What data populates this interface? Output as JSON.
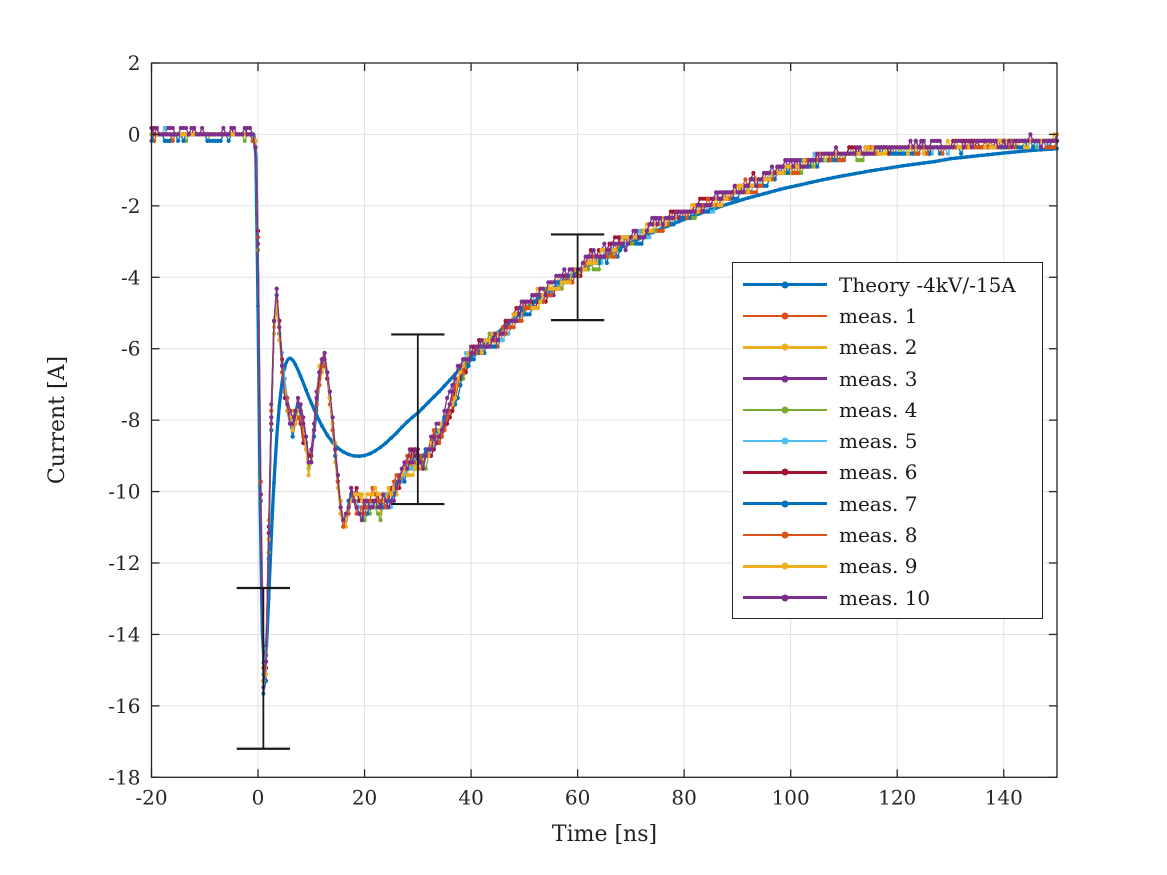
{
  "figure": {
    "background": "#ffffff",
    "axes_color": "#262626",
    "grid_color": "#e0e0e0",
    "errorbar_color": "#1a1a1a",
    "text_color": "#1f1f1f"
  },
  "chart_data": {
    "type": "line",
    "title": "",
    "xlabel": "Time [ns]",
    "ylabel": "Current [A]",
    "xlim": [
      -20,
      150
    ],
    "ylim": [
      -18,
      2
    ],
    "xticks": [
      -20,
      0,
      20,
      40,
      60,
      80,
      100,
      120,
      140
    ],
    "yticks": [
      2,
      0,
      -2,
      -4,
      -6,
      -8,
      -10,
      -12,
      -14,
      -16,
      -18
    ],
    "grid": true,
    "legend": {
      "position": "right-center",
      "entries": [
        {
          "label": "Theory -4kV/-15A",
          "color": "#0072BD"
        },
        {
          "label": "meas. 1",
          "color": "#D95319"
        },
        {
          "label": "meas. 2",
          "color": "#EDB120"
        },
        {
          "label": "meas. 3",
          "color": "#7E2F8E"
        },
        {
          "label": "meas. 4",
          "color": "#77AC30"
        },
        {
          "label": "meas. 5",
          "color": "#4DBEEE"
        },
        {
          "label": "meas. 6",
          "color": "#A2142F"
        },
        {
          "label": "meas. 7",
          "color": "#0072BD"
        },
        {
          "label": "meas. 8",
          "color": "#D95319"
        },
        {
          "label": "meas. 9",
          "color": "#EDB120"
        },
        {
          "label": "meas. 10",
          "color": "#7E2F8E"
        }
      ]
    },
    "theory": {
      "name": "Theory -4kV/-15A",
      "color": "#0072BD",
      "points": [
        [
          -20,
          0
        ],
        [
          -10,
          0
        ],
        [
          -5,
          0
        ],
        [
          -2,
          0
        ],
        [
          -1,
          0
        ],
        [
          -0.6,
          0
        ],
        [
          -0.4,
          -0.6
        ],
        [
          -0.2,
          -2.2
        ],
        [
          0,
          -4.8
        ],
        [
          0.2,
          -7.8
        ],
        [
          0.4,
          -10.4
        ],
        [
          0.6,
          -12.4
        ],
        [
          0.8,
          -13.9
        ],
        [
          1,
          -14.8
        ],
        [
          1.2,
          -15
        ],
        [
          1.4,
          -14.8
        ],
        [
          1.7,
          -14
        ],
        [
          2,
          -13
        ],
        [
          2.4,
          -11.6
        ],
        [
          2.8,
          -10.3
        ],
        [
          3.2,
          -9.2
        ],
        [
          3.6,
          -8.3
        ],
        [
          4,
          -7.6
        ],
        [
          4.4,
          -7.05
        ],
        [
          4.8,
          -6.65
        ],
        [
          5.2,
          -6.42
        ],
        [
          5.6,
          -6.3
        ],
        [
          6,
          -6.27
        ],
        [
          6.4,
          -6.3
        ],
        [
          6.8,
          -6.38
        ],
        [
          7.2,
          -6.5
        ],
        [
          7.6,
          -6.63
        ],
        [
          8,
          -6.77
        ],
        [
          8.5,
          -6.96
        ],
        [
          9,
          -7.15
        ],
        [
          9.5,
          -7.34
        ],
        [
          10,
          -7.52
        ],
        [
          11,
          -7.86
        ],
        [
          12,
          -8.16
        ],
        [
          13,
          -8.42
        ],
        [
          14,
          -8.62
        ],
        [
          15,
          -8.78
        ],
        [
          16,
          -8.89
        ],
        [
          17,
          -8.96
        ],
        [
          18,
          -9
        ],
        [
          19,
          -9.01
        ],
        [
          20,
          -8.99
        ],
        [
          21,
          -8.94
        ],
        [
          22,
          -8.86
        ],
        [
          23,
          -8.76
        ],
        [
          24,
          -8.64
        ],
        [
          25,
          -8.5
        ],
        [
          26,
          -8.36
        ],
        [
          27,
          -8.2
        ],
        [
          28,
          -8.05
        ],
        [
          29,
          -7.92
        ],
        [
          30,
          -7.8
        ],
        [
          32,
          -7.5
        ],
        [
          34,
          -7.2
        ],
        [
          36,
          -6.88
        ],
        [
          38,
          -6.55
        ],
        [
          40,
          -6.22
        ],
        [
          42,
          -5.95
        ],
        [
          44,
          -5.68
        ],
        [
          46,
          -5.42
        ],
        [
          48,
          -5.16
        ],
        [
          50,
          -4.92
        ],
        [
          52,
          -4.68
        ],
        [
          54,
          -4.46
        ],
        [
          56,
          -4.25
        ],
        [
          58,
          -4.05
        ],
        [
          60,
          -3.86
        ],
        [
          62,
          -3.68
        ],
        [
          64,
          -3.5
        ],
        [
          66,
          -3.34
        ],
        [
          68,
          -3.18
        ],
        [
          70,
          -3.03
        ],
        [
          72,
          -2.89
        ],
        [
          74,
          -2.75
        ],
        [
          76,
          -2.62
        ],
        [
          78,
          -2.5
        ],
        [
          80,
          -2.38
        ],
        [
          82,
          -2.27
        ],
        [
          84,
          -2.16
        ],
        [
          86,
          -2.06
        ],
        [
          88,
          -1.96
        ],
        [
          90,
          -1.87
        ],
        [
          92,
          -1.78
        ],
        [
          94,
          -1.7
        ],
        [
          96,
          -1.62
        ],
        [
          98,
          -1.54
        ],
        [
          100,
          -1.47
        ],
        [
          103,
          -1.37
        ],
        [
          106,
          -1.27
        ],
        [
          109,
          -1.18
        ],
        [
          112,
          -1.1
        ],
        [
          115,
          -1.02
        ],
        [
          118,
          -0.95
        ],
        [
          121,
          -0.88
        ],
        [
          124,
          -0.82
        ],
        [
          127,
          -0.76
        ],
        [
          130,
          -0.68
        ],
        [
          135,
          -0.6
        ],
        [
          140,
          -0.52
        ],
        [
          145,
          -0.45
        ],
        [
          150,
          -0.4
        ]
      ]
    },
    "measurement_base_points": [
      [
        -20,
        0
      ],
      [
        -15,
        0
      ],
      [
        -10,
        0
      ],
      [
        -6,
        0
      ],
      [
        -3,
        0
      ],
      [
        -1.5,
        0
      ],
      [
        -1,
        -0.05
      ],
      [
        -0.5,
        -0.3
      ],
      [
        0,
        -3
      ],
      [
        0.3,
        -7
      ],
      [
        0.6,
        -11.5
      ],
      [
        0.9,
        -14.8
      ],
      [
        1.1,
        -15.6
      ],
      [
        1.3,
        -15.7
      ],
      [
        1.6,
        -14.3
      ],
      [
        1.9,
        -12
      ],
      [
        2.2,
        -9.8
      ],
      [
        2.5,
        -7.9
      ],
      [
        2.8,
        -6.2
      ],
      [
        3.1,
        -5
      ],
      [
        3.4,
        -4.45
      ],
      [
        3.7,
        -4.75
      ],
      [
        4,
        -5.4
      ],
      [
        4.4,
        -6.2
      ],
      [
        4.8,
        -6.9
      ],
      [
        5.2,
        -7.3
      ],
      [
        5.6,
        -7.6
      ],
      [
        6,
        -7.95
      ],
      [
        6.4,
        -8.2
      ],
      [
        6.8,
        -8.05
      ],
      [
        7.2,
        -7.75
      ],
      [
        7.6,
        -7.65
      ],
      [
        8,
        -7.9
      ],
      [
        8.4,
        -8.2
      ],
      [
        8.8,
        -8.6
      ],
      [
        9.2,
        -9
      ],
      [
        9.6,
        -9.35
      ],
      [
        10,
        -9.1
      ],
      [
        10.4,
        -8.6
      ],
      [
        10.8,
        -7.9
      ],
      [
        11.2,
        -7.2
      ],
      [
        11.6,
        -6.7
      ],
      [
        12,
        -6.35
      ],
      [
        12.4,
        -6.25
      ],
      [
        12.8,
        -6.45
      ],
      [
        13.2,
        -6.9
      ],
      [
        13.6,
        -7.5
      ],
      [
        14,
        -8.1
      ],
      [
        14.4,
        -8.7
      ],
      [
        14.8,
        -9.4
      ],
      [
        15.2,
        -10
      ],
      [
        15.6,
        -10.5
      ],
      [
        16,
        -10.8
      ],
      [
        16.5,
        -10.7
      ],
      [
        17,
        -10.4
      ],
      [
        17.5,
        -10.2
      ],
      [
        18.2,
        -10.3
      ],
      [
        19,
        -10.45
      ],
      [
        19.8,
        -10.5
      ],
      [
        20.6,
        -10.3
      ],
      [
        21.4,
        -10.1
      ],
      [
        22.2,
        -10.2
      ],
      [
        23,
        -10.35
      ],
      [
        23.8,
        -10.3
      ],
      [
        24.6,
        -10.15
      ],
      [
        25.4,
        -10
      ],
      [
        26.2,
        -9.8
      ],
      [
        27,
        -9.5
      ],
      [
        28,
        -9.25
      ],
      [
        29,
        -9.15
      ],
      [
        30,
        -9.1
      ],
      [
        31,
        -9.1
      ],
      [
        32,
        -8.95
      ],
      [
        33,
        -8.65
      ],
      [
        34,
        -8.35
      ],
      [
        35,
        -8
      ],
      [
        36,
        -7.6
      ],
      [
        37,
        -7.2
      ],
      [
        38,
        -6.85
      ],
      [
        39,
        -6.5
      ],
      [
        40,
        -6.15
      ],
      [
        41,
        -6
      ],
      [
        42,
        -5.95
      ],
      [
        43,
        -5.85
      ],
      [
        44,
        -5.75
      ],
      [
        45,
        -5.7
      ],
      [
        46,
        -5.6
      ],
      [
        47,
        -5.45
      ],
      [
        48,
        -5.2
      ],
      [
        49,
        -5
      ],
      [
        50,
        -4.85
      ],
      [
        51,
        -4.8
      ],
      [
        52,
        -4.7
      ],
      [
        53,
        -4.55
      ],
      [
        54,
        -4.45
      ],
      [
        55,
        -4.35
      ],
      [
        56,
        -4.2
      ],
      [
        57,
        -4.1
      ],
      [
        58,
        -4.05
      ],
      [
        59,
        -3.95
      ],
      [
        60,
        -3.9
      ],
      [
        61,
        -3.75
      ],
      [
        62,
        -3.6
      ],
      [
        63,
        -3.5
      ],
      [
        64,
        -3.45
      ],
      [
        65,
        -3.35
      ],
      [
        66,
        -3.25
      ],
      [
        67,
        -3.15
      ],
      [
        68,
        -3.1
      ],
      [
        70,
        -2.95
      ],
      [
        72,
        -2.8
      ],
      [
        74,
        -2.6
      ],
      [
        76,
        -2.5
      ],
      [
        78,
        -2.35
      ],
      [
        80,
        -2.25
      ],
      [
        82,
        -2.1
      ],
      [
        84,
        -2
      ],
      [
        86,
        -1.9
      ],
      [
        88,
        -1.75
      ],
      [
        90,
        -1.6
      ],
      [
        92,
        -1.45
      ],
      [
        94,
        -1.3
      ],
      [
        96,
        -1.15
      ],
      [
        98,
        -1.05
      ],
      [
        100,
        -0.95
      ],
      [
        102,
        -0.85
      ],
      [
        104,
        -0.75
      ],
      [
        106,
        -0.68
      ],
      [
        108,
        -0.62
      ],
      [
        110,
        -0.56
      ],
      [
        113,
        -0.5
      ],
      [
        116,
        -0.46
      ],
      [
        120,
        -0.42
      ],
      [
        124,
        -0.39
      ],
      [
        128,
        -0.36
      ],
      [
        132,
        -0.33
      ],
      [
        136,
        -0.3
      ],
      [
        140,
        -0.28
      ],
      [
        144,
        -0.25
      ],
      [
        147,
        -0.22
      ],
      [
        150,
        -0.18
      ]
    ],
    "measurements": [
      {
        "name": "meas. 1",
        "color": "#D95319",
        "seed": 1
      },
      {
        "name": "meas. 2",
        "color": "#EDB120",
        "seed": 2
      },
      {
        "name": "meas. 3",
        "color": "#7E2F8E",
        "seed": 3
      },
      {
        "name": "meas. 4",
        "color": "#77AC30",
        "seed": 4
      },
      {
        "name": "meas. 5",
        "color": "#4DBEEE",
        "seed": 5
      },
      {
        "name": "meas. 6",
        "color": "#A2142F",
        "seed": 6
      },
      {
        "name": "meas. 7",
        "color": "#0072BD",
        "seed": 7
      },
      {
        "name": "meas. 8",
        "color": "#D95319",
        "seed": 8
      },
      {
        "name": "meas. 9",
        "color": "#EDB120",
        "seed": 9
      },
      {
        "name": "meas. 10",
        "color": "#7E2F8E",
        "seed": 10
      }
    ],
    "errorbars": [
      {
        "x": 1,
        "y_top": -12.7,
        "y_bottom": -17.2
      },
      {
        "x": 30,
        "y_top": -5.6,
        "y_bottom": -10.35
      },
      {
        "x": 60,
        "y_top": -2.8,
        "y_bottom": -5.2
      }
    ],
    "errorbar_cap_half_width_ns": 5,
    "sample_step_ns": 0.5,
    "noise": {
      "quantum_A": 0.18,
      "amplitudes": [
        [
          -20,
          0.07
        ],
        [
          -0.4,
          0.3
        ],
        [
          2.5,
          0.22
        ],
        [
          17,
          0.25
        ],
        [
          40,
          0.15
        ],
        [
          70,
          0.12
        ],
        [
          110,
          0.09
        ]
      ]
    }
  }
}
